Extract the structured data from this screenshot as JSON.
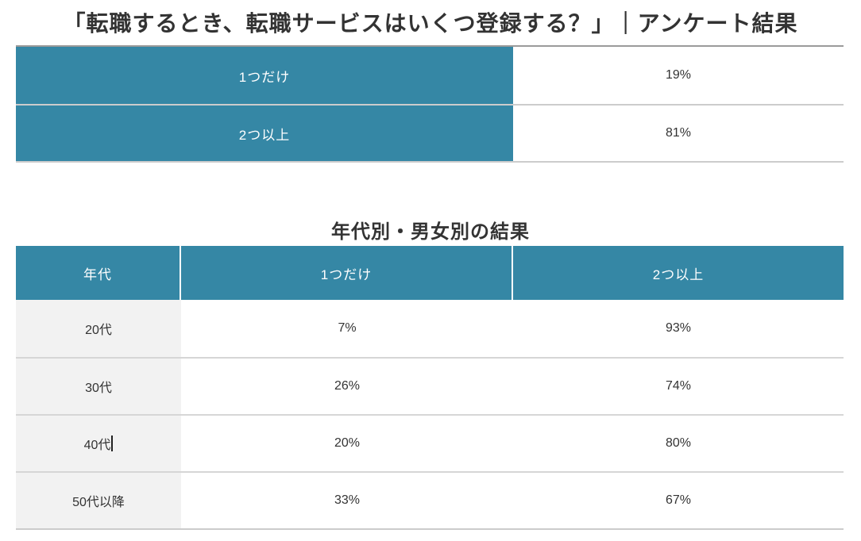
{
  "page": {
    "title": "「転職するとき、転職サービスはいくつ登録する？」｜アンケート結果",
    "section_title": "年代別・男女別の結果"
  },
  "colors": {
    "accent_teal": "#3587A5",
    "header_text": "#ffffff",
    "body_text": "#333333",
    "row_divider": "#cccccc",
    "age_column_bg": "#f2f2f2",
    "table_top_border": "#9a9a9a"
  },
  "summary_table": {
    "rows": [
      {
        "label": "1つだけ",
        "value": "19%"
      },
      {
        "label": "2つ以上",
        "value": "81%"
      }
    ]
  },
  "breakdown_table": {
    "headers": {
      "age": "年代",
      "one": "1つだけ",
      "two_plus": "2つ以上"
    },
    "rows": [
      {
        "age": "20代",
        "one": "7%",
        "two_plus": "93%"
      },
      {
        "age": "30代",
        "one": "26%",
        "two_plus": "74%"
      },
      {
        "age": "40代",
        "one": "20%",
        "two_plus": "80%"
      },
      {
        "age": "50代以降",
        "one": "33%",
        "two_plus": "67%"
      }
    ],
    "edit_state": {
      "caret_visible_after": "40代"
    }
  }
}
